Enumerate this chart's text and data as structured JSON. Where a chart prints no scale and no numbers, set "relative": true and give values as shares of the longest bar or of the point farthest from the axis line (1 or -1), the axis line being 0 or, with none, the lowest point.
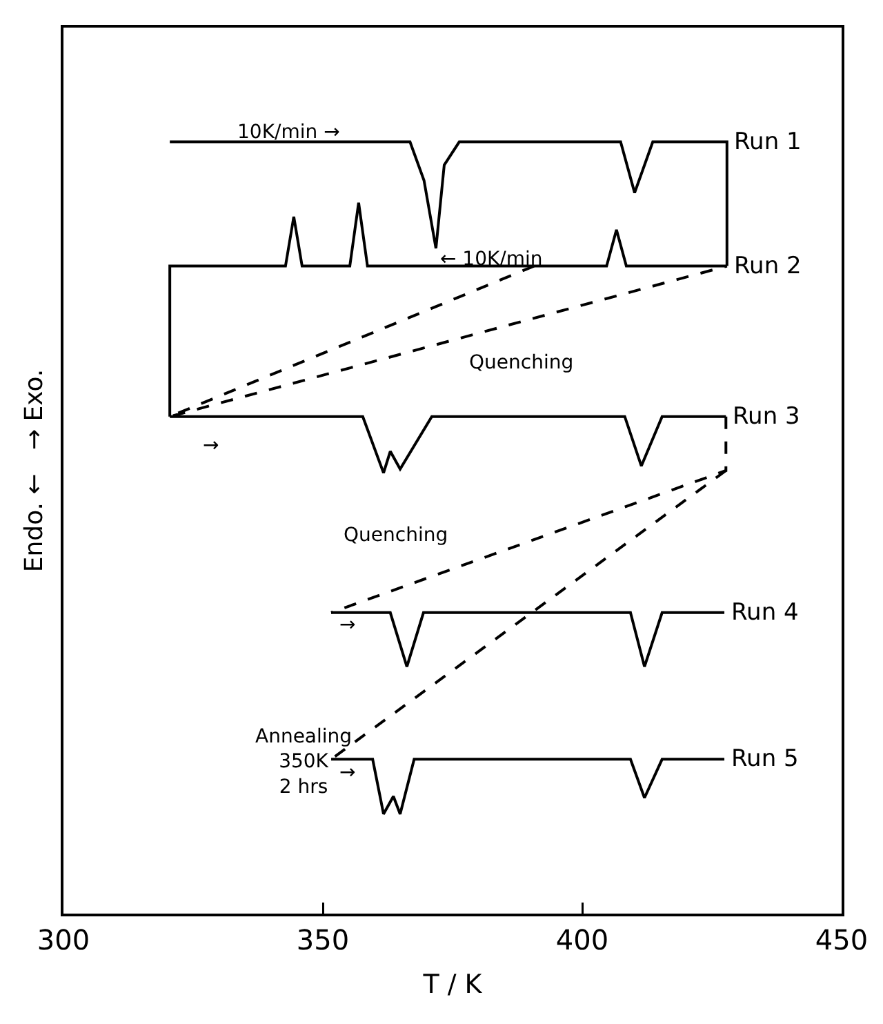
{
  "chart_data": {
    "type": "line",
    "relative": true,
    "xlabel": "T / K",
    "ylabel": "Endo. ←   → Exo.",
    "xlim": [
      300,
      450
    ],
    "xticks": [
      300,
      350,
      400,
      450
    ],
    "grid": false,
    "legend": false,
    "marker": "none",
    "series": [
      {
        "name": "Run 1",
        "color": "#000000",
        "line_style": "solid",
        "x": [
          320.5,
          366.8,
          369.5,
          371.8,
          373.4,
          376.3,
          407.4,
          410.1,
          413.6,
          427.9,
          427.9
        ],
        "values": [
          1.0,
          1.0,
          0.95,
          0.862,
          0.97,
          1.0,
          1.0,
          0.934,
          1.0,
          1.0,
          0.839
        ]
      },
      {
        "name": "Run 2",
        "color": "#000000",
        "line_style": "solid",
        "x": [
          427.9,
          408.5,
          406.6,
          404.7,
          358.6,
          356.9,
          355.2,
          346.0,
          344.4,
          342.8,
          320.5,
          320.5
        ],
        "values": [
          0.839,
          0.839,
          0.886,
          0.839,
          0.839,
          0.921,
          0.839,
          0.839,
          0.903,
          0.839,
          0.839,
          0.644
        ]
      },
      {
        "name": "Run 3",
        "color": "#000000",
        "line_style": "solid",
        "x": [
          320.5,
          357.7,
          361.7,
          363.0,
          364.9,
          371.0,
          408.2,
          411.4,
          415.4,
          427.7
        ],
        "values": [
          0.644,
          0.644,
          0.571,
          0.599,
          0.576,
          0.644,
          0.644,
          0.58,
          0.644,
          0.644
        ]
      },
      {
        "name": "Run 4",
        "color": "#000000",
        "line_style": "solid",
        "x": [
          351.6,
          363.0,
          366.2,
          369.4,
          409.3,
          412.0,
          415.4,
          427.4
        ],
        "values": [
          0.39,
          0.39,
          0.32,
          0.39,
          0.39,
          0.32,
          0.39,
          0.39
        ]
      },
      {
        "name": "Run 5",
        "color": "#000000",
        "line_style": "solid",
        "x": [
          351.6,
          359.6,
          361.7,
          363.6,
          364.9,
          367.6,
          409.3,
          412.0,
          415.4,
          427.4
        ],
        "values": [
          0.2,
          0.2,
          0.129,
          0.152,
          0.129,
          0.2,
          0.2,
          0.15,
          0.2,
          0.2
        ]
      },
      {
        "color": "#000000",
        "line_style": "dashed",
        "x": [
          390.7,
          320.5,
          427.9
        ],
        "values": [
          0.839,
          0.644,
          0.839
        ]
      },
      {
        "color": "#000000",
        "line_style": "dashed",
        "x": [
          427.7,
          427.7,
          351.6,
          null,
          427.7,
          351.6
        ],
        "values": [
          0.644,
          0.574,
          0.39,
          null,
          0.574,
          0.2
        ]
      }
    ],
    "annotations": [
      "10K/min →",
      "← 10K/min",
      "Quenching",
      "→",
      "Quenching",
      "→",
      "→",
      "Annealing\n350K\n2 hrs"
    ]
  }
}
